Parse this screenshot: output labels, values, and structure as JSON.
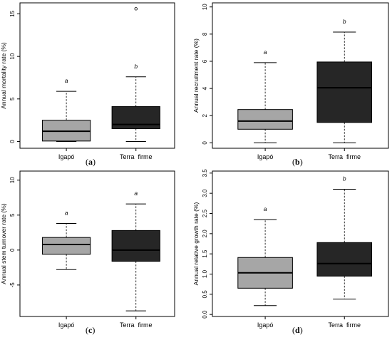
{
  "chart_data": [
    {
      "type": "box",
      "panel_label": "(a)",
      "ylabel": "Annual mortality rate (%)",
      "ylim": [
        -0.8,
        16.3
      ],
      "yticks": [
        0,
        5,
        10,
        15
      ],
      "ytick_labels": [
        "0",
        "5",
        "10",
        "15"
      ],
      "categories": [
        "Igapó",
        "Terra  firme"
      ],
      "boxes": [
        {
          "min": 0.0,
          "q1": 0.05,
          "median": 1.2,
          "q3": 2.5,
          "max": 5.9,
          "outliers": [],
          "letter": "a",
          "color": "#a6a6a6"
        },
        {
          "min": 0.0,
          "q1": 1.5,
          "median": 2.0,
          "q3": 4.1,
          "max": 7.6,
          "outliers": [
            15.6
          ],
          "letter": "b",
          "color": "#262626"
        }
      ]
    },
    {
      "type": "box",
      "panel_label": "(b)",
      "ylabel": "Annual recruitment rate (%)",
      "ylim": [
        -0.4,
        10.3
      ],
      "yticks": [
        0,
        2,
        4,
        6,
        8,
        10
      ],
      "ytick_labels": [
        "0",
        "2",
        "4",
        "6",
        "8",
        "10"
      ],
      "categories": [
        "Igapó",
        "Terra  firme"
      ],
      "boxes": [
        {
          "min": 0.0,
          "q1": 1.0,
          "median": 1.6,
          "q3": 2.45,
          "max": 5.9,
          "outliers": [],
          "letter": "a",
          "color": "#a6a6a6"
        },
        {
          "min": 0.0,
          "q1": 1.5,
          "median": 4.05,
          "q3": 5.95,
          "max": 8.15,
          "outliers": [],
          "letter": "b",
          "color": "#262626"
        }
      ]
    },
    {
      "type": "box",
      "panel_label": "(c)",
      "ylabel": "Annual stem turnover rate (%)",
      "ylim": [
        -9.5,
        11.3
      ],
      "yticks": [
        -5,
        0,
        5,
        10
      ],
      "ytick_labels": [
        "-5",
        "0",
        "5",
        "10"
      ],
      "categories": [
        "Igapó",
        "Terra  firme"
      ],
      "boxes": [
        {
          "min": -2.8,
          "q1": -0.6,
          "median": 0.8,
          "q3": 1.8,
          "max": 3.8,
          "outliers": [],
          "letter": "a",
          "color": "#a6a6a6"
        },
        {
          "min": -8.7,
          "q1": -1.6,
          "median": 0.0,
          "q3": 2.8,
          "max": 6.6,
          "outliers": [],
          "letter": "a",
          "color": "#262626"
        }
      ]
    },
    {
      "type": "box",
      "panel_label": "(d)",
      "ylabel": "Annual relative growth rate (%)",
      "ylim": [
        -0.05,
        3.55
      ],
      "yticks": [
        0,
        0.5,
        1,
        1.5,
        2,
        2.5,
        3,
        3.5
      ],
      "ytick_labels": [
        "0.0",
        "0.5",
        "1.0",
        "1.5",
        "2.0",
        "2.5",
        "3.0",
        "3.5"
      ],
      "categories": [
        "Igapó",
        "Terra  firme"
      ],
      "boxes": [
        {
          "min": 0.22,
          "q1": 0.65,
          "median": 1.03,
          "q3": 1.41,
          "max": 2.35,
          "outliers": [],
          "letter": "a",
          "color": "#a6a6a6"
        },
        {
          "min": 0.38,
          "q1": 0.95,
          "median": 1.26,
          "q3": 1.78,
          "max": 3.1,
          "outliers": [],
          "letter": "b",
          "color": "#262626"
        }
      ]
    }
  ]
}
